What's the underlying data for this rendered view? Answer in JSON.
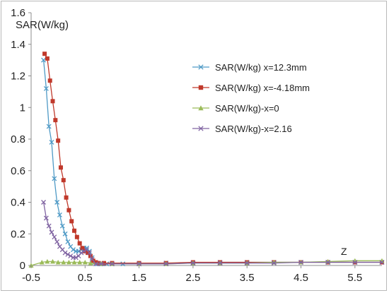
{
  "chart_data": {
    "type": "scatter",
    "ylabel": "SAR(W/kg)",
    "xlabel": "Z",
    "xlim": [
      -0.5,
      6.0
    ],
    "ylim": [
      0,
      1.6
    ],
    "x_ticks": [
      -0.5,
      0.5,
      1.5,
      2.5,
      3.5,
      4.5,
      5.5
    ],
    "x_tick_labels": [
      "-0.5",
      "0.5",
      "1.5",
      "2.5",
      "3.5",
      "4.5",
      "5.5"
    ],
    "y_ticks": [
      0,
      0.2,
      0.4,
      0.6,
      0.8,
      1.0,
      1.2,
      1.4,
      1.6
    ],
    "y_tick_labels": [
      "0",
      "0.2",
      "0.4",
      "0.6",
      "0.8",
      "1",
      "1.2",
      "1.4",
      "1.6"
    ],
    "grid": false,
    "legend_position": "right",
    "series": [
      {
        "name": "SAR(W/kg) x=12.3mm",
        "color": "#4f9ac6",
        "marker": "x",
        "x": [
          -0.27,
          -0.22,
          -0.17,
          -0.12,
          -0.07,
          -0.02,
          0.03,
          0.08,
          0.13,
          0.18,
          0.23,
          0.28,
          0.33,
          0.38,
          0.43,
          0.48,
          0.53,
          0.58,
          0.63,
          0.68,
          0.73,
          0.78,
          0.83,
          0.9,
          1.0,
          1.2,
          1.5,
          2.0,
          2.5,
          3.0,
          3.5,
          4.0,
          4.5,
          5.0,
          5.5,
          6.0
        ],
        "y": [
          1.3,
          1.12,
          0.88,
          0.78,
          0.55,
          0.4,
          0.32,
          0.25,
          0.2,
          0.15,
          0.12,
          0.1,
          0.09,
          0.09,
          0.1,
          0.11,
          0.11,
          0.09,
          0.05,
          0.02,
          0.01,
          0.01,
          0.01,
          0.01,
          0.01,
          0.01,
          0.01,
          0.015,
          0.015,
          0.02,
          0.02,
          0.02,
          0.02,
          0.02,
          0.02,
          0.02
        ]
      },
      {
        "name": "SAR(W/kg) x=-4.18mm",
        "color": "#c0392b",
        "marker": "square",
        "x": [
          -0.25,
          -0.2,
          -0.15,
          -0.1,
          -0.05,
          0.0,
          0.05,
          0.1,
          0.15,
          0.2,
          0.25,
          0.3,
          0.35,
          0.4,
          0.45,
          0.5,
          0.55,
          0.6,
          0.65,
          0.7,
          0.75,
          0.85,
          1.0,
          1.5,
          2.0,
          2.5,
          3.0,
          3.5,
          4.0,
          4.5,
          5.0,
          5.5,
          6.0
        ],
        "y": [
          1.34,
          1.31,
          1.17,
          1.04,
          0.92,
          0.79,
          0.62,
          0.54,
          0.43,
          0.35,
          0.28,
          0.22,
          0.18,
          0.14,
          0.11,
          0.09,
          0.08,
          0.06,
          0.03,
          0.02,
          0.015,
          0.015,
          0.015,
          0.015,
          0.015,
          0.02,
          0.02,
          0.02,
          0.02,
          0.02,
          0.02,
          0.02,
          0.02
        ]
      },
      {
        "name": "SAR(W/kg)-x=0",
        "color": "#9bbb59",
        "marker": "triangle",
        "x": [
          -0.5,
          -0.3,
          -0.2,
          -0.1,
          0.0,
          0.1,
          0.2,
          0.3,
          0.4,
          0.5,
          0.6,
          0.8,
          1.0,
          1.5,
          2.0,
          2.5,
          3.0,
          3.5,
          4.0,
          4.5,
          5.0,
          5.5,
          6.0
        ],
        "y": [
          0.0,
          0.02,
          0.025,
          0.025,
          0.02,
          0.02,
          0.02,
          0.02,
          0.02,
          0.02,
          0.015,
          0.01,
          0.01,
          0.01,
          0.01,
          0.015,
          0.015,
          0.015,
          0.02,
          0.02,
          0.025,
          0.03,
          0.03
        ]
      },
      {
        "name": "SAR(W/kg)-x=2.16",
        "color": "#8064a2",
        "marker": "x",
        "x": [
          -0.27,
          -0.22,
          -0.17,
          -0.12,
          -0.07,
          -0.02,
          0.03,
          0.08,
          0.13,
          0.18,
          0.23,
          0.28,
          0.33,
          0.38,
          0.43,
          0.48,
          0.53,
          0.58,
          0.63,
          0.7,
          0.8,
          1.0,
          1.5,
          2.0,
          2.5,
          3.0,
          3.5,
          4.0,
          4.5,
          5.0,
          5.5,
          6.0
        ],
        "y": [
          0.4,
          0.3,
          0.25,
          0.21,
          0.18,
          0.15,
          0.12,
          0.1,
          0.08,
          0.07,
          0.06,
          0.05,
          0.05,
          0.06,
          0.08,
          0.09,
          0.1,
          0.08,
          0.04,
          0.01,
          0.01,
          0.01,
          0.01,
          0.01,
          0.015,
          0.015,
          0.015,
          0.015,
          0.02,
          0.02,
          0.02,
          0.02
        ]
      }
    ]
  }
}
